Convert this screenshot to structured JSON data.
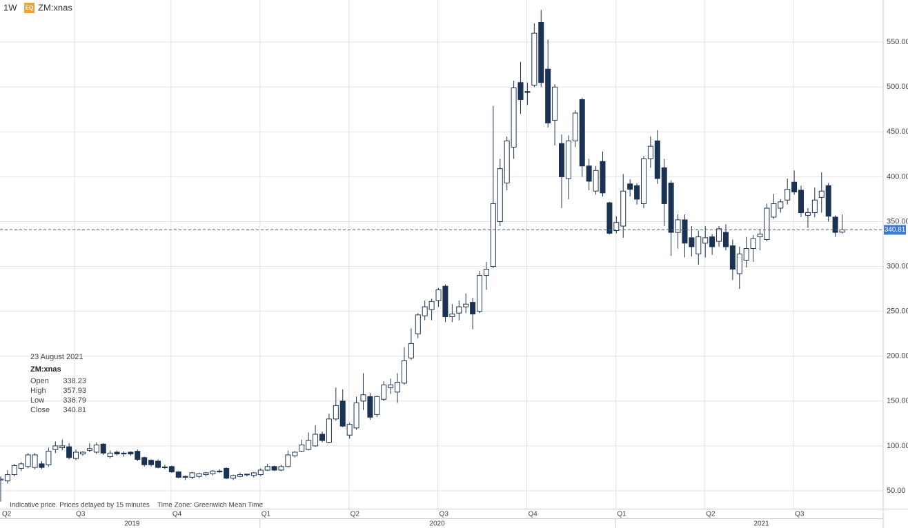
{
  "header": {
    "interval": "1W",
    "badge": "EQ",
    "symbol": "ZM:xnas"
  },
  "info": {
    "date": "23 August 2021",
    "symbol": "ZM:xnas",
    "rows": [
      {
        "label": "Open",
        "value": 338.23
      },
      {
        "label": "High",
        "value": 357.93
      },
      {
        "label": "Low",
        "value": 336.79
      },
      {
        "label": "Close",
        "value": 340.81
      }
    ]
  },
  "footer": {
    "note": "Indicative price. Prices delayed by 15 minutes",
    "timezone": "Time Zone: Greenwich Mean Time"
  },
  "chart_data": {
    "type": "candlestick",
    "up_color": "#ffffff",
    "down_color": "#1b3352",
    "outline_color": "#1b3352",
    "last_price": 340.81,
    "last_price_color": "#d9302c",
    "last_price_box_color": "#3d7bd1",
    "ylim": [
      30,
      597
    ],
    "yticks": [
      {
        "value": 50,
        "label": "50.00"
      },
      {
        "value": 100,
        "label": "100.00"
      },
      {
        "value": 150,
        "label": "150.00"
      },
      {
        "value": 200,
        "label": "200.00"
      },
      {
        "value": 250,
        "label": "250.00"
      },
      {
        "value": 300,
        "label": "300.00"
      },
      {
        "value": 350,
        "label": "350.00"
      },
      {
        "value": 400,
        "label": "400.00"
      },
      {
        "value": 450,
        "label": "450.00"
      },
      {
        "value": 500,
        "label": "500.00"
      },
      {
        "value": 550,
        "label": "550.00"
      }
    ],
    "xlim": [
      -0.1,
      129
    ],
    "xticks": [
      {
        "value": 0,
        "label": "Q2"
      },
      {
        "value": 10.8,
        "label": "Q3"
      },
      {
        "value": 24.9,
        "label": "Q4"
      },
      {
        "value": 37.9,
        "label": "Q1"
      },
      {
        "value": 50.9,
        "label": "Q2"
      },
      {
        "value": 63.9,
        "label": "Q3"
      },
      {
        "value": 76.9,
        "label": "Q4"
      },
      {
        "value": 89.9,
        "label": "Q1"
      },
      {
        "value": 102.9,
        "label": "Q2"
      },
      {
        "value": 115.9,
        "label": "Q3"
      }
    ],
    "years": [
      {
        "value": 19.2,
        "label": "2019"
      },
      {
        "value": 63.8,
        "label": "2020"
      },
      {
        "value": 111.2,
        "label": "2021"
      }
    ],
    "year_breaks": [
      37.9,
      89.9
    ],
    "grid": true,
    "open": [
      62,
      61,
      68,
      75,
      77,
      76,
      80,
      79,
      96,
      98,
      99,
      86,
      91,
      95,
      93,
      102,
      88,
      93,
      92,
      93,
      94,
      87,
      84,
      83,
      76,
      77,
      71,
      66,
      65,
      66,
      68,
      69,
      72,
      75,
      64,
      66,
      68,
      67,
      68,
      73,
      77,
      73,
      77,
      89,
      94,
      96,
      100,
      113,
      104,
      130,
      150,
      112,
      120,
      150,
      155,
      135,
      152,
      165,
      160,
      170,
      198,
      225,
      245,
      252,
      262,
      278,
      244,
      248,
      255,
      260,
      250,
      290,
      300,
      350,
      393,
      433,
      505,
      495,
      502,
      572,
      520,
      463,
      437,
      398,
      440,
      486,
      412,
      384,
      417,
      371,
      340,
      345,
      392,
      390,
      370,
      420,
      440,
      410,
      393,
      338,
      352,
      332,
      314,
      326,
      333,
      328,
      338,
      323,
      292,
      307,
      320,
      333,
      330,
      355,
      365,
      374,
      394,
      385,
      357,
      360,
      377,
      390,
      355,
      338.23
    ],
    "high": [
      66,
      73,
      80,
      82,
      92,
      92,
      83,
      98,
      105,
      107,
      103,
      96,
      94,
      103,
      104,
      103,
      95,
      95,
      94,
      94,
      96,
      88,
      85,
      85,
      79,
      78,
      72,
      67,
      71,
      70,
      71,
      73,
      74,
      76,
      68,
      70,
      69,
      71,
      75,
      80,
      78,
      79,
      95,
      94,
      107,
      115,
      123,
      116,
      136,
      165,
      163,
      126,
      155,
      181,
      159,
      156,
      172,
      175,
      181,
      210,
      231,
      248,
      262,
      264,
      276,
      280,
      258,
      262,
      270,
      265,
      295,
      305,
      479,
      420,
      445,
      507,
      528,
      505,
      571,
      586,
      553,
      503,
      447,
      446,
      474,
      488,
      420,
      412,
      428,
      372,
      356,
      403,
      397,
      393,
      423,
      445,
      452,
      420,
      396,
      358,
      358,
      345,
      340,
      345,
      336,
      345,
      347,
      330,
      322,
      333,
      335,
      342,
      370,
      381,
      375,
      398,
      407,
      390,
      365,
      388,
      405,
      393,
      357,
      357.93
    ],
    "low": [
      38,
      58,
      66,
      72,
      75,
      74,
      74,
      77,
      92,
      95,
      85,
      84,
      89,
      93,
      91,
      90,
      86,
      89,
      88,
      89,
      83,
      77,
      77,
      75,
      74,
      70,
      64,
      62,
      63,
      64,
      66,
      67,
      70,
      63,
      62,
      65,
      66,
      65,
      66,
      72,
      72,
      72,
      76,
      87,
      93,
      95,
      99,
      104,
      103,
      128,
      121,
      108,
      118,
      140,
      129,
      132,
      150,
      158,
      148,
      168,
      196,
      220,
      240,
      240,
      255,
      238,
      238,
      240,
      248,
      230,
      248,
      274,
      298,
      345,
      385,
      420,
      470,
      480,
      500,
      500,
      455,
      435,
      365,
      375,
      433,
      400,
      385,
      380,
      378,
      336,
      337,
      332,
      378,
      369,
      365,
      410,
      392,
      345,
      312,
      320,
      310,
      311,
      302,
      310,
      313,
      322,
      318,
      285,
      275,
      299,
      305,
      318,
      328,
      353,
      360,
      369,
      380,
      355,
      343,
      355,
      360,
      350,
      333,
      336.79
    ],
    "close": [
      63,
      68,
      78,
      80,
      90,
      90,
      76,
      94,
      100,
      100,
      87,
      93,
      93,
      97,
      101,
      92,
      92,
      91,
      91,
      91,
      85,
      79,
      79,
      76,
      76.5,
      71,
      65,
      65,
      70,
      69,
      70,
      72,
      71,
      64,
      67,
      68,
      68.5,
      70,
      73,
      77,
      73,
      77,
      90,
      93,
      101,
      106,
      113,
      106,
      130,
      145,
      122,
      124,
      148,
      157,
      132,
      155,
      168,
      168,
      171,
      195,
      214,
      246,
      255,
      261,
      274,
      244,
      247,
      255,
      258,
      247,
      290,
      297,
      370,
      409,
      440,
      499,
      486,
      494,
      560,
      505,
      460,
      500,
      400,
      440,
      471,
      412,
      395,
      407,
      382,
      337,
      349,
      384,
      386,
      375,
      420,
      434,
      398,
      370,
      338,
      352,
      326,
      322,
      333,
      332,
      322,
      342,
      322,
      297,
      314,
      320,
      331,
      336,
      365,
      370,
      372,
      386,
      383,
      360,
      360,
      374,
      384,
      356,
      338,
      340.81
    ]
  }
}
